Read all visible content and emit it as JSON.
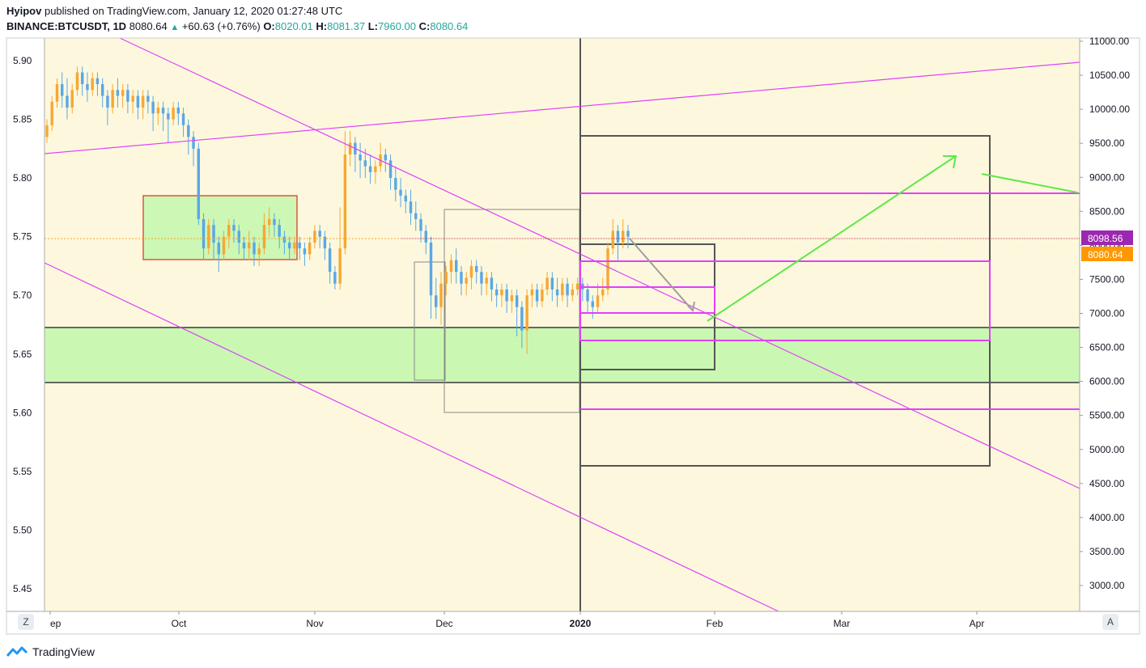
{
  "header": {
    "author": "Hyipov",
    "published_text": "published on TradingView.com, January 12, 2020 01:27:48 UTC",
    "symbol": "BINANCE:BTCUSDT, 1D",
    "last": "8080.64",
    "change": "+60.63 (+0.76%)",
    "o_label": "O:",
    "o_value": "8020.01",
    "h_label": "H:",
    "h_value": "8081.37",
    "l_label": "L:",
    "l_value": "7960.00",
    "c_label": "C:",
    "c_value": "8080.64"
  },
  "footer": {
    "brand": "TradingView"
  },
  "corner_buttons": {
    "left": "Z",
    "right": "A"
  },
  "chart_data": {
    "type": "candlestick",
    "left_axis": {
      "ticks": [
        "5.90",
        "5.85",
        "5.80",
        "5.75",
        "5.70",
        "5.65",
        "5.60",
        "5.55",
        "5.50",
        "5.45"
      ],
      "range": [
        5.425,
        5.922
      ]
    },
    "right_axis": {
      "ticks": [
        "11000.00",
        "10500.00",
        "10000.00",
        "9500.00",
        "9000.00",
        "8500.00",
        "8000.00",
        "7500.00",
        "7000.00",
        "6500.00",
        "6000.00",
        "5500.00",
        "5000.00",
        "4500.00",
        "4000.00",
        "3500.00",
        "3000.00"
      ],
      "range": [
        2700,
        11000
      ]
    },
    "x_axis": {
      "ticks": [
        "ep",
        "Oct",
        "Nov",
        "Dec",
        "2020",
        "Feb",
        "Mar",
        "Apr"
      ],
      "bold_tick": "2020"
    },
    "price_labels": [
      {
        "value": "8098.56",
        "color": "#9c27b0"
      },
      {
        "value": "8080.64",
        "color": "#ff9800"
      }
    ],
    "colors": {
      "background": "#fdf8dd",
      "bull": "#f7a733",
      "bear": "#5aa7e6",
      "trendline": "#e040fb",
      "box": "#555555",
      "green_zone": "#c4f7ad",
      "green_arrow": "#5de84a",
      "red_box": "#e5533b"
    },
    "candles_log": [
      [
        5.835,
        5.845,
        5.83,
        5.85
      ],
      [
        5.845,
        5.865,
        5.84,
        5.87
      ],
      [
        5.865,
        5.88,
        5.86,
        5.885
      ],
      [
        5.88,
        5.87,
        5.86,
        5.89
      ],
      [
        5.87,
        5.86,
        5.85,
        5.885
      ],
      [
        5.86,
        5.875,
        5.855,
        5.88
      ],
      [
        5.875,
        5.89,
        5.87,
        5.895
      ],
      [
        5.89,
        5.88,
        5.87,
        5.895
      ],
      [
        5.88,
        5.875,
        5.865,
        5.89
      ],
      [
        5.875,
        5.885,
        5.87,
        5.89
      ],
      [
        5.885,
        5.88,
        5.87,
        5.89
      ],
      [
        5.88,
        5.87,
        5.86,
        5.885
      ],
      [
        5.87,
        5.86,
        5.845,
        5.875
      ],
      [
        5.86,
        5.875,
        5.855,
        5.88
      ],
      [
        5.875,
        5.87,
        5.86,
        5.885
      ],
      [
        5.87,
        5.875,
        5.86,
        5.88
      ],
      [
        5.875,
        5.865,
        5.855,
        5.88
      ],
      [
        5.865,
        5.87,
        5.855,
        5.875
      ],
      [
        5.87,
        5.86,
        5.85,
        5.875
      ],
      [
        5.86,
        5.87,
        5.85,
        5.875
      ],
      [
        5.87,
        5.865,
        5.855,
        5.875
      ],
      [
        5.865,
        5.855,
        5.84,
        5.87
      ],
      [
        5.855,
        5.86,
        5.845,
        5.865
      ],
      [
        5.86,
        5.855,
        5.84,
        5.865
      ],
      [
        5.855,
        5.85,
        5.83,
        5.86
      ],
      [
        5.85,
        5.86,
        5.845,
        5.865
      ],
      [
        5.86,
        5.855,
        5.845,
        5.865
      ],
      [
        5.855,
        5.845,
        5.835,
        5.86
      ],
      [
        5.845,
        5.835,
        5.82,
        5.85
      ],
      [
        5.835,
        5.825,
        5.81,
        5.84
      ],
      [
        5.825,
        5.765,
        5.76,
        5.83
      ],
      [
        5.765,
        5.74,
        5.73,
        5.77
      ],
      [
        5.74,
        5.76,
        5.735,
        5.765
      ],
      [
        5.76,
        5.745,
        5.73,
        5.765
      ],
      [
        5.745,
        5.735,
        5.72,
        5.75
      ],
      [
        5.735,
        5.75,
        5.73,
        5.755
      ],
      [
        5.75,
        5.76,
        5.74,
        5.765
      ],
      [
        5.76,
        5.755,
        5.745,
        5.765
      ],
      [
        5.755,
        5.745,
        5.735,
        5.76
      ],
      [
        5.745,
        5.74,
        5.73,
        5.75
      ],
      [
        5.74,
        5.745,
        5.73,
        5.755
      ],
      [
        5.745,
        5.735,
        5.725,
        5.75
      ],
      [
        5.735,
        5.74,
        5.725,
        5.745
      ],
      [
        5.74,
        5.76,
        5.735,
        5.77
      ],
      [
        5.76,
        5.765,
        5.75,
        5.775
      ],
      [
        5.765,
        5.76,
        5.75,
        5.77
      ],
      [
        5.76,
        5.75,
        5.74,
        5.765
      ],
      [
        5.75,
        5.745,
        5.735,
        5.755
      ],
      [
        5.745,
        5.74,
        5.73,
        5.75
      ],
      [
        5.74,
        5.745,
        5.735,
        5.75
      ],
      [
        5.745,
        5.74,
        5.73,
        5.75
      ],
      [
        5.74,
        5.735,
        5.725,
        5.745
      ],
      [
        5.735,
        5.745,
        5.73,
        5.75
      ],
      [
        5.745,
        5.755,
        5.74,
        5.76
      ],
      [
        5.755,
        5.75,
        5.74,
        5.76
      ],
      [
        5.75,
        5.74,
        5.73,
        5.755
      ],
      [
        5.74,
        5.72,
        5.71,
        5.745
      ],
      [
        5.72,
        5.71,
        5.705,
        5.725
      ],
      [
        5.71,
        5.74,
        5.705,
        5.775
      ],
      [
        5.74,
        5.82,
        5.735,
        5.84
      ],
      [
        5.82,
        5.83,
        5.81,
        5.84
      ],
      [
        5.83,
        5.82,
        5.805,
        5.835
      ],
      [
        5.82,
        5.815,
        5.8,
        5.83
      ],
      [
        5.815,
        5.81,
        5.8,
        5.825
      ],
      [
        5.81,
        5.805,
        5.795,
        5.82
      ],
      [
        5.805,
        5.81,
        5.795,
        5.815
      ],
      [
        5.81,
        5.82,
        5.805,
        5.83
      ],
      [
        5.82,
        5.815,
        5.805,
        5.825
      ],
      [
        5.815,
        5.8,
        5.79,
        5.82
      ],
      [
        5.8,
        5.79,
        5.78,
        5.81
      ],
      [
        5.79,
        5.785,
        5.775,
        5.8
      ],
      [
        5.785,
        5.78,
        5.77,
        5.79
      ],
      [
        5.78,
        5.77,
        5.76,
        5.79
      ],
      [
        5.77,
        5.765,
        5.755,
        5.78
      ],
      [
        5.765,
        5.755,
        5.745,
        5.77
      ],
      [
        5.755,
        5.745,
        5.735,
        5.76
      ],
      [
        5.745,
        5.7,
        5.68,
        5.75
      ],
      [
        5.7,
        5.69,
        5.68,
        5.715
      ],
      [
        5.69,
        5.71,
        5.675,
        5.72
      ],
      [
        5.71,
        5.72,
        5.7,
        5.725
      ],
      [
        5.72,
        5.73,
        5.71,
        5.735
      ],
      [
        5.73,
        5.72,
        5.71,
        5.74
      ],
      [
        5.72,
        5.71,
        5.7,
        5.725
      ],
      [
        5.71,
        5.715,
        5.7,
        5.72
      ],
      [
        5.715,
        5.725,
        5.705,
        5.73
      ],
      [
        5.725,
        5.72,
        5.71,
        5.73
      ],
      [
        5.72,
        5.71,
        5.7,
        5.725
      ],
      [
        5.71,
        5.715,
        5.7,
        5.72
      ],
      [
        5.715,
        5.705,
        5.695,
        5.72
      ],
      [
        5.705,
        5.7,
        5.69,
        5.71
      ],
      [
        5.7,
        5.705,
        5.69,
        5.71
      ],
      [
        5.705,
        5.695,
        5.685,
        5.71
      ],
      [
        5.695,
        5.7,
        5.685,
        5.705
      ],
      [
        5.7,
        5.69,
        5.665,
        5.705
      ],
      [
        5.69,
        5.67,
        5.655,
        5.695
      ],
      [
        5.67,
        5.7,
        5.65,
        5.705
      ],
      [
        5.7,
        5.705,
        5.69,
        5.71
      ],
      [
        5.705,
        5.695,
        5.69,
        5.71
      ],
      [
        5.695,
        5.705,
        5.69,
        5.71
      ],
      [
        5.705,
        5.715,
        5.7,
        5.72
      ],
      [
        5.715,
        5.705,
        5.695,
        5.72
      ],
      [
        5.705,
        5.7,
        5.69,
        5.715
      ],
      [
        5.7,
        5.71,
        5.695,
        5.715
      ],
      [
        5.71,
        5.7,
        5.69,
        5.715
      ],
      [
        5.7,
        5.705,
        5.695,
        5.71
      ],
      [
        5.705,
        5.71,
        5.7,
        5.715
      ],
      [
        5.71,
        5.705,
        5.695,
        5.715
      ],
      [
        5.705,
        5.695,
        5.685,
        5.71
      ],
      [
        5.695,
        5.69,
        5.68,
        5.7
      ],
      [
        5.69,
        5.7,
        5.685,
        5.71
      ],
      [
        5.7,
        5.705,
        5.695,
        5.715
      ],
      [
        5.705,
        5.74,
        5.7,
        5.745
      ],
      [
        5.74,
        5.755,
        5.735,
        5.765
      ],
      [
        5.755,
        5.745,
        5.73,
        5.76
      ],
      [
        5.745,
        5.755,
        5.74,
        5.765
      ],
      [
        5.755,
        5.75,
        5.74,
        5.76
      ]
    ],
    "x_start_label": "2019-09-01"
  }
}
